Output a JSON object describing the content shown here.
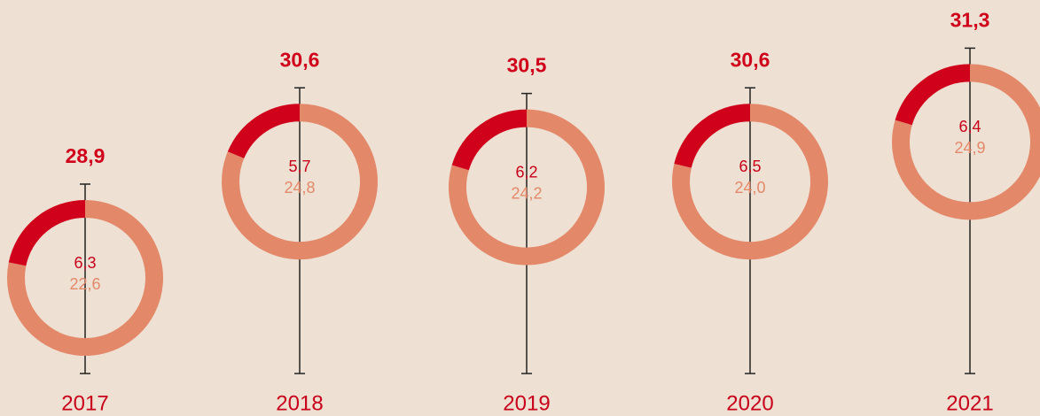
{
  "chart_data": {
    "type": "donut-series",
    "categories": [
      "2017",
      "2018",
      "2019",
      "2020",
      "2021"
    ],
    "totals": [
      28.9,
      30.6,
      30.5,
      30.6,
      31.3
    ],
    "total_labels": [
      "28,9",
      "30,6",
      "30,5",
      "30,6",
      "31,3"
    ],
    "series": [
      {
        "color": "#d0021b",
        "values": [
          6.3,
          5.7,
          6.2,
          6.5,
          6.4
        ],
        "value_labels": [
          "6,3",
          "5,7",
          "6,2",
          "6,5",
          "6,4"
        ]
      },
      {
        "color": "#e3896a",
        "values": [
          22.6,
          24.8,
          24.2,
          24.0,
          24.9
        ],
        "value_labels": [
          "22,6",
          "24,8",
          "24,2",
          "24,0",
          "24,9"
        ]
      }
    ]
  }
}
